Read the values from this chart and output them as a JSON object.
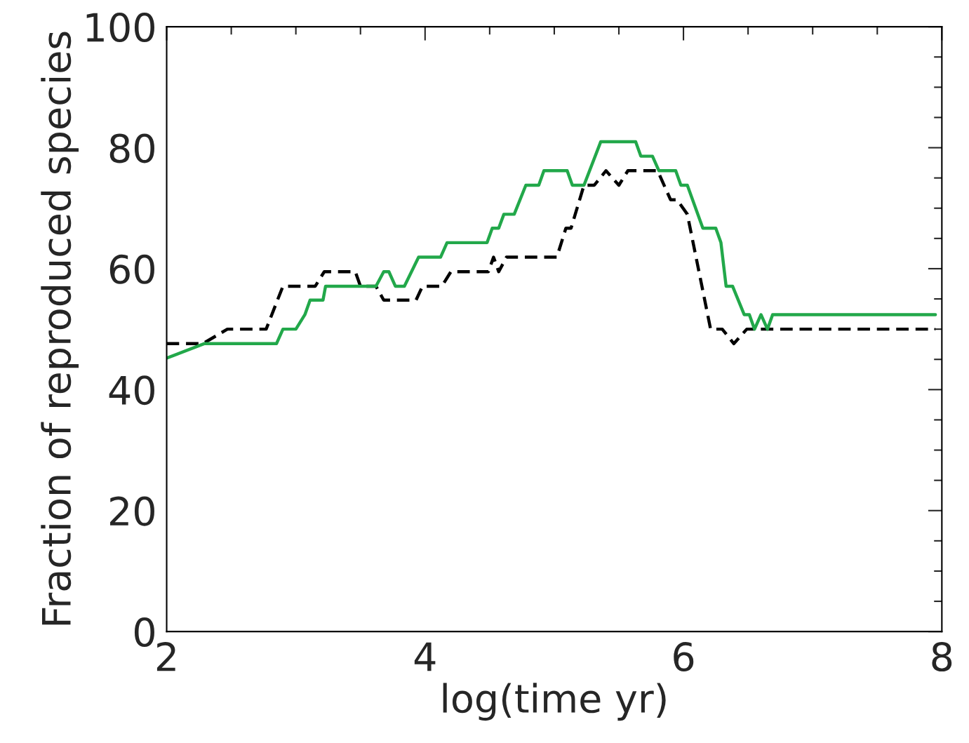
{
  "chart_data": {
    "type": "line",
    "xlabel": "log(time yr)",
    "ylabel": "Fraction of reproduced species",
    "xlim": [
      2,
      8
    ],
    "ylim": [
      0,
      100
    ],
    "xticks": [
      2,
      {
        "value": 2.5,
        "label": null
      },
      {
        "value": 3,
        "label": null
      },
      {
        "value": 3.5,
        "label": null
      },
      4,
      {
        "value": 4.5,
        "label": null
      },
      {
        "value": 5,
        "label": null
      },
      {
        "value": 5.5,
        "label": null
      },
      6,
      {
        "value": 6.5,
        "label": null
      },
      {
        "value": 7,
        "label": null
      },
      {
        "value": 7.5,
        "label": null
      },
      8
    ],
    "yticks": [
      0,
      {
        "value": 5,
        "label": null
      },
      {
        "value": 10,
        "label": null
      },
      {
        "value": 15,
        "label": null
      },
      20,
      {
        "value": 25,
        "label": null
      },
      {
        "value": 30,
        "label": null
      },
      {
        "value": 35,
        "label": null
      },
      40,
      {
        "value": 45,
        "label": null
      },
      {
        "value": 50,
        "label": null
      },
      {
        "value": 55,
        "label": null
      },
      60,
      {
        "value": 65,
        "label": null
      },
      {
        "value": 70,
        "label": null
      },
      {
        "value": 75,
        "label": null
      },
      80,
      {
        "value": 85,
        "label": null
      },
      {
        "value": 90,
        "label": null
      },
      {
        "value": 95,
        "label": null
      },
      100
    ],
    "grid": false,
    "legend": false,
    "marker": "none",
    "series": [
      {
        "color": "#000000",
        "line_style": "dashed",
        "x": [
          2.0,
          2.28,
          2.47,
          2.77,
          2.9,
          3.15,
          3.22,
          3.46,
          3.5,
          3.62,
          3.68,
          3.93,
          3.98,
          4.13,
          4.2,
          4.49,
          4.53,
          4.57,
          4.63,
          5.02,
          5.09,
          5.13,
          5.23,
          5.31,
          5.4,
          5.5,
          5.57,
          5.8,
          5.9,
          5.95,
          6.03,
          6.21,
          6.3,
          6.39,
          6.49,
          7.95
        ],
        "values": [
          47.6,
          47.6,
          50.0,
          50.0,
          57.1,
          57.1,
          59.5,
          59.5,
          57.1,
          57.1,
          54.8,
          54.8,
          57.1,
          57.1,
          59.5,
          59.5,
          61.9,
          59.5,
          61.9,
          61.9,
          66.7,
          66.7,
          73.8,
          73.8,
          76.2,
          73.8,
          76.2,
          76.2,
          71.4,
          71.4,
          69.0,
          50.0,
          50.0,
          47.6,
          50.0,
          50.0
        ]
      },
      {
        "color": "#22a84a",
        "line_style": "solid",
        "x": [
          2.0,
          2.29,
          2.85,
          2.9,
          3.0,
          3.07,
          3.11,
          3.21,
          3.23,
          3.62,
          3.68,
          3.72,
          3.77,
          3.84,
          3.95,
          4.12,
          4.17,
          4.48,
          4.52,
          4.57,
          4.61,
          4.69,
          4.78,
          4.88,
          4.92,
          5.1,
          5.14,
          5.23,
          5.36,
          5.63,
          5.67,
          5.76,
          5.81,
          5.94,
          5.98,
          6.03,
          6.15,
          6.25,
          6.29,
          6.33,
          6.38,
          6.47,
          6.51,
          6.55,
          6.6,
          6.65,
          6.69,
          7.95
        ],
        "values": [
          45.2,
          47.6,
          47.6,
          50.0,
          50.0,
          52.4,
          54.8,
          54.8,
          57.1,
          57.1,
          59.5,
          59.5,
          57.1,
          57.1,
          61.9,
          61.9,
          64.3,
          64.3,
          66.7,
          66.7,
          69.0,
          69.0,
          73.8,
          73.8,
          76.2,
          76.2,
          73.8,
          73.8,
          81.0,
          81.0,
          78.6,
          78.6,
          76.2,
          76.2,
          73.8,
          73.8,
          66.7,
          66.7,
          64.3,
          57.1,
          57.1,
          52.4,
          52.4,
          50.0,
          52.4,
          50.0,
          52.4,
          52.4
        ]
      }
    ]
  }
}
